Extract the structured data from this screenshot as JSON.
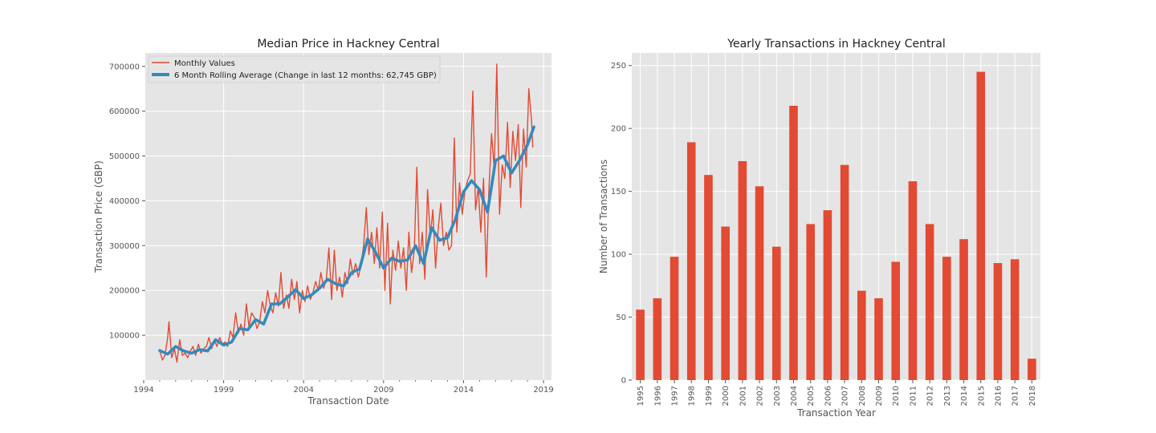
{
  "chart_data": [
    {
      "type": "line",
      "title": "Median Price in Hackney Central",
      "xlabel": "Transaction Date",
      "ylabel": "Transaction Price (GBP)",
      "xlim": [
        1994.1,
        2019.5
      ],
      "ylim": [
        0,
        730000
      ],
      "x_ticks": [
        1994,
        1999,
        2004,
        2009,
        2014,
        2019
      ],
      "y_ticks": [
        100000,
        200000,
        300000,
        400000,
        500000,
        600000,
        700000
      ],
      "grid": true,
      "legend_position": "top-left",
      "series": [
        {
          "name": "Monthly Values",
          "color": "#E24A33",
          "points": [
            [
              1995.0,
              65000
            ],
            [
              1995.17,
              45000
            ],
            [
              1995.33,
              55000
            ],
            [
              1995.5,
              95000
            ],
            [
              1995.58,
              130000
            ],
            [
              1995.75,
              50000
            ],
            [
              1995.92,
              70000
            ],
            [
              1996.08,
              40000
            ],
            [
              1996.25,
              90000
            ],
            [
              1996.42,
              55000
            ],
            [
              1996.58,
              60000
            ],
            [
              1996.75,
              50000
            ],
            [
              1996.92,
              65000
            ],
            [
              1997.08,
              75000
            ],
            [
              1997.25,
              55000
            ],
            [
              1997.42,
              80000
            ],
            [
              1997.58,
              60000
            ],
            [
              1997.75,
              70000
            ],
            [
              1997.92,
              75000
            ],
            [
              1998.08,
              95000
            ],
            [
              1998.25,
              70000
            ],
            [
              1998.42,
              90000
            ],
            [
              1998.58,
              75000
            ],
            [
              1998.75,
              95000
            ],
            [
              1998.92,
              80000
            ],
            [
              1999.08,
              85000
            ],
            [
              1999.25,
              75000
            ],
            [
              1999.42,
              110000
            ],
            [
              1999.58,
              95000
            ],
            [
              1999.75,
              150000
            ],
            [
              1999.92,
              105000
            ],
            [
              2000.08,
              125000
            ],
            [
              2000.25,
              100000
            ],
            [
              2000.42,
              170000
            ],
            [
              2000.58,
              120000
            ],
            [
              2000.75,
              150000
            ],
            [
              2000.92,
              140000
            ],
            [
              2001.08,
              115000
            ],
            [
              2001.25,
              130000
            ],
            [
              2001.42,
              175000
            ],
            [
              2001.58,
              150000
            ],
            [
              2001.75,
              200000
            ],
            [
              2001.92,
              165000
            ],
            [
              2002.08,
              150000
            ],
            [
              2002.25,
              195000
            ],
            [
              2002.42,
              165000
            ],
            [
              2002.58,
              240000
            ],
            [
              2002.75,
              160000
            ],
            [
              2002.92,
              190000
            ],
            [
              2003.08,
              160000
            ],
            [
              2003.25,
              225000
            ],
            [
              2003.42,
              180000
            ],
            [
              2003.58,
              220000
            ],
            [
              2003.75,
              150000
            ],
            [
              2003.92,
              200000
            ],
            [
              2004.08,
              175000
            ],
            [
              2004.25,
              210000
            ],
            [
              2004.42,
              180000
            ],
            [
              2004.58,
              195000
            ],
            [
              2004.75,
              220000
            ],
            [
              2004.92,
              200000
            ],
            [
              2005.08,
              240000
            ],
            [
              2005.25,
              205000
            ],
            [
              2005.42,
              225000
            ],
            [
              2005.58,
              295000
            ],
            [
              2005.75,
              180000
            ],
            [
              2005.92,
              290000
            ],
            [
              2006.08,
              200000
            ],
            [
              2006.25,
              230000
            ],
            [
              2006.42,
              185000
            ],
            [
              2006.58,
              240000
            ],
            [
              2006.75,
              215000
            ],
            [
              2006.92,
              270000
            ],
            [
              2007.08,
              235000
            ],
            [
              2007.25,
              260000
            ],
            [
              2007.42,
              230000
            ],
            [
              2007.58,
              255000
            ],
            [
              2007.75,
              300000
            ],
            [
              2007.92,
              385000
            ],
            [
              2008.08,
              280000
            ],
            [
              2008.25,
              330000
            ],
            [
              2008.42,
              260000
            ],
            [
              2008.58,
              340000
            ],
            [
              2008.75,
              250000
            ],
            [
              2008.92,
              375000
            ],
            [
              2009.08,
              200000
            ],
            [
              2009.25,
              350000
            ],
            [
              2009.42,
              170000
            ],
            [
              2009.58,
              290000
            ],
            [
              2009.75,
              245000
            ],
            [
              2009.92,
              310000
            ],
            [
              2010.08,
              250000
            ],
            [
              2010.25,
              295000
            ],
            [
              2010.42,
              200000
            ],
            [
              2010.58,
              330000
            ],
            [
              2010.75,
              240000
            ],
            [
              2010.92,
              290000
            ],
            [
              2011.08,
              475000
            ],
            [
              2011.25,
              260000
            ],
            [
              2011.42,
              330000
            ],
            [
              2011.58,
              225000
            ],
            [
              2011.75,
              425000
            ],
            [
              2011.92,
              320000
            ],
            [
              2012.08,
              380000
            ],
            [
              2012.25,
              250000
            ],
            [
              2012.42,
              340000
            ],
            [
              2012.58,
              395000
            ],
            [
              2012.75,
              300000
            ],
            [
              2012.92,
              330000
            ],
            [
              2013.08,
              290000
            ],
            [
              2013.25,
              300000
            ],
            [
              2013.42,
              540000
            ],
            [
              2013.58,
              330000
            ],
            [
              2013.75,
              440000
            ],
            [
              2013.92,
              370000
            ],
            [
              2014.08,
              420000
            ],
            [
              2014.25,
              445000
            ],
            [
              2014.42,
              460000
            ],
            [
              2014.58,
              645000
            ],
            [
              2014.75,
              380000
            ],
            [
              2014.92,
              430000
            ],
            [
              2015.08,
              330000
            ],
            [
              2015.25,
              450000
            ],
            [
              2015.42,
              230000
            ],
            [
              2015.58,
              420000
            ],
            [
              2015.75,
              550000
            ],
            [
              2015.92,
              470000
            ],
            [
              2016.08,
              705000
            ],
            [
              2016.25,
              370000
            ],
            [
              2016.42,
              480000
            ],
            [
              2016.58,
              450000
            ],
            [
              2016.75,
              575000
            ],
            [
              2016.92,
              430000
            ],
            [
              2017.08,
              555000
            ],
            [
              2017.25,
              490000
            ],
            [
              2017.42,
              570000
            ],
            [
              2017.58,
              385000
            ],
            [
              2017.75,
              560000
            ],
            [
              2017.92,
              475000
            ],
            [
              2018.08,
              650000
            ],
            [
              2018.25,
              580000
            ],
            [
              2018.33,
              520000
            ]
          ]
        },
        {
          "name": "6 Month Rolling Average (Change in last 12 months: 62,745 GBP)",
          "color": "#348ABD",
          "points": [
            [
              1995.0,
              66000
            ],
            [
              1995.5,
              58000
            ],
            [
              1996.0,
              75000
            ],
            [
              1996.5,
              65000
            ],
            [
              1997.0,
              60000
            ],
            [
              1997.5,
              68000
            ],
            [
              1998.0,
              65000
            ],
            [
              1998.5,
              90000
            ],
            [
              1999.0,
              78000
            ],
            [
              1999.5,
              85000
            ],
            [
              2000.0,
              115000
            ],
            [
              2000.5,
              112000
            ],
            [
              2001.0,
              135000
            ],
            [
              2001.5,
              125000
            ],
            [
              2002.0,
              170000
            ],
            [
              2002.5,
              170000
            ],
            [
              2003.0,
              185000
            ],
            [
              2003.5,
              202000
            ],
            [
              2004.0,
              182000
            ],
            [
              2004.5,
              190000
            ],
            [
              2005.0,
              205000
            ],
            [
              2005.5,
              225000
            ],
            [
              2006.0,
              215000
            ],
            [
              2006.5,
              210000
            ],
            [
              2007.0,
              240000
            ],
            [
              2007.5,
              248000
            ],
            [
              2008.0,
              315000
            ],
            [
              2008.5,
              285000
            ],
            [
              2009.0,
              250000
            ],
            [
              2009.5,
              272000
            ],
            [
              2010.0,
              265000
            ],
            [
              2010.5,
              268000
            ],
            [
              2011.0,
              300000
            ],
            [
              2011.5,
              260000
            ],
            [
              2012.0,
              340000
            ],
            [
              2012.5,
              312000
            ],
            [
              2013.0,
              318000
            ],
            [
              2013.5,
              360000
            ],
            [
              2014.0,
              420000
            ],
            [
              2014.5,
              445000
            ],
            [
              2015.0,
              425000
            ],
            [
              2015.5,
              375000
            ],
            [
              2016.0,
              490000
            ],
            [
              2016.5,
              500000
            ],
            [
              2017.0,
              462000
            ],
            [
              2017.5,
              490000
            ],
            [
              2018.0,
              525000
            ],
            [
              2018.4,
              565000
            ]
          ]
        }
      ]
    },
    {
      "type": "bar",
      "title": "Yearly Transactions in Hackney Central",
      "xlabel": "Transaction Year",
      "ylabel": "Number of Transactions",
      "ylim": [
        0,
        260
      ],
      "y_ticks": [
        0,
        50,
        100,
        150,
        200,
        250
      ],
      "grid": true,
      "color": "#E24A33",
      "categories": [
        "1995",
        "1996",
        "1997",
        "1998",
        "1999",
        "2000",
        "2001",
        "2002",
        "2003",
        "2004",
        "2005",
        "2006",
        "2007",
        "2008",
        "2009",
        "2010",
        "2011",
        "2012",
        "2013",
        "2014",
        "2015",
        "2016",
        "2017",
        "2018"
      ],
      "values": [
        56,
        65,
        98,
        189,
        163,
        122,
        174,
        154,
        106,
        218,
        124,
        135,
        171,
        71,
        65,
        94,
        158,
        124,
        98,
        112,
        245,
        93,
        96,
        17
      ]
    }
  ]
}
